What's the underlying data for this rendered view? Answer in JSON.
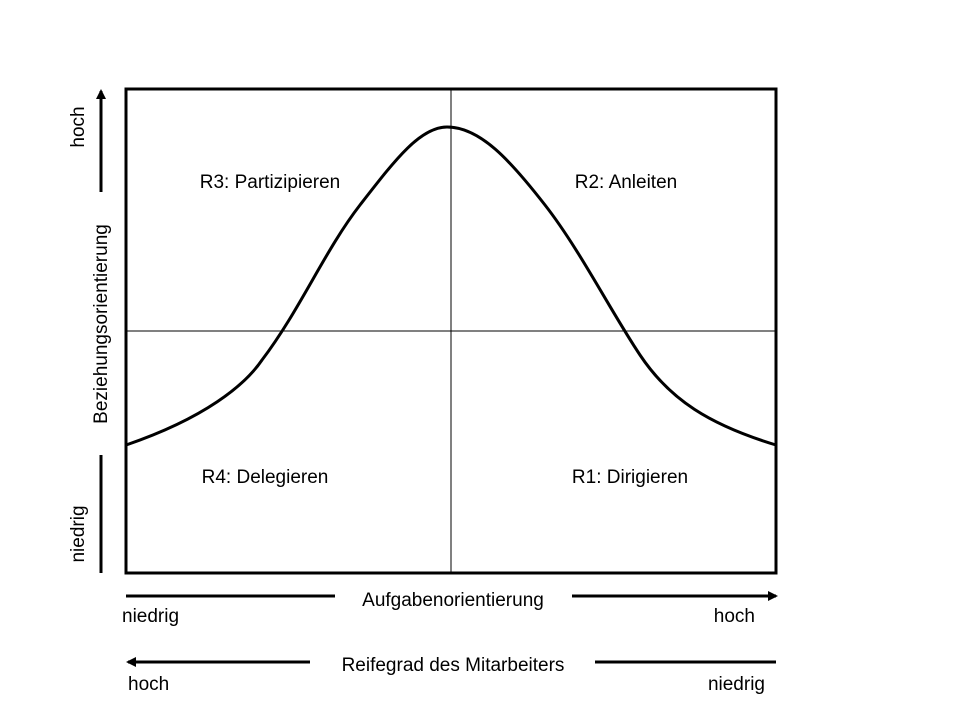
{
  "quadrants": {
    "r1": "R1: Dirigieren",
    "r2": "R2: Anleiten",
    "r3": "R3: Partizipieren",
    "r4": "R4: Delegieren"
  },
  "x_axis": {
    "label": "Aufgabenorientierung",
    "low": "niedrig",
    "high": "hoch"
  },
  "y_axis": {
    "label": "Beziehungsorientierung",
    "low": "niedrig",
    "high": "hoch"
  },
  "maturity_axis": {
    "label": "Reifegrad des Mitarbeiters",
    "left": "hoch",
    "right": "niedrig"
  }
}
